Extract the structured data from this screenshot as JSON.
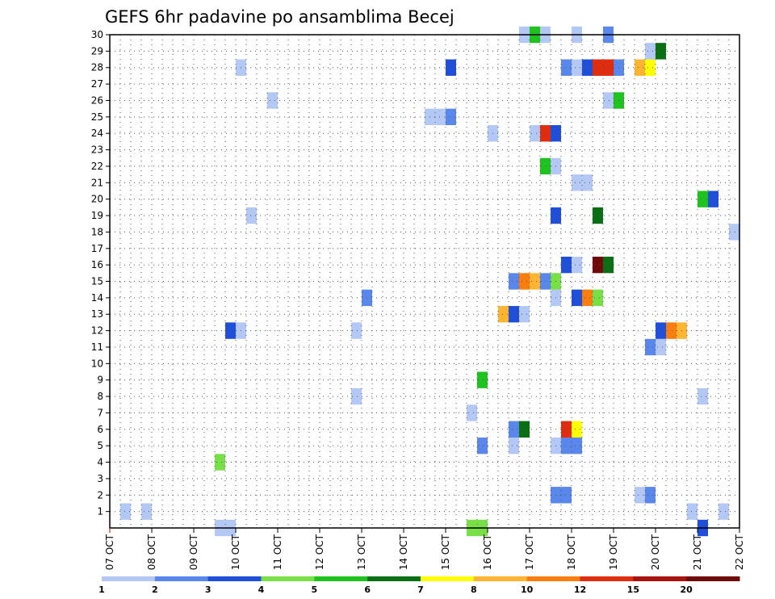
{
  "chart_data": {
    "type": "heatmap",
    "title": "GEFS 6hr padavine po ansamblima Becej",
    "x_ticks": [
      "07 OCT",
      "08 OCT",
      "09 OCT",
      "10 OCT",
      "11 OCT",
      "12 OCT",
      "13 OCT",
      "14 OCT",
      "15 OCT",
      "16 OCT",
      "17 OCT",
      "18 OCT",
      "19 OCT",
      "20 OCT",
      "21 OCT",
      "22 OCT"
    ],
    "x_range_days": [
      7,
      22
    ],
    "y_ticks": [
      "1",
      "2",
      "3",
      "4",
      "5",
      "6",
      "7",
      "8",
      "9",
      "10",
      "11",
      "12",
      "13",
      "14",
      "15",
      "16",
      "17",
      "18",
      "19",
      "20",
      "21",
      "22",
      "23",
      "24",
      "25",
      "26",
      "27",
      "28",
      "29",
      "30"
    ],
    "y_range": [
      0,
      30
    ],
    "grid": "dotted",
    "cell_hours": 6,
    "colorbar": {
      "labels": [
        "1",
        "2",
        "3",
        "4",
        "5",
        "6",
        "7",
        "8",
        "10",
        "12",
        "15",
        "20"
      ],
      "colors": [
        "#b4c8f5",
        "#5a87ec",
        "#1f4fd9",
        "#78e046",
        "#1ec31e",
        "#0a6e12",
        "#ffff00",
        "#ffb432",
        "#fa7d0f",
        "#e12d0f",
        "#a5140f",
        "#6e0a0a"
      ]
    },
    "cells": [
      {
        "day": 7.25,
        "member": 1,
        "bin": 1
      },
      {
        "day": 7.75,
        "member": 1,
        "bin": 1
      },
      {
        "day": 9.5,
        "member": 0,
        "bin": 1
      },
      {
        "day": 9.75,
        "member": 0,
        "bin": 1
      },
      {
        "day": 15.5,
        "member": 0,
        "bin": 4
      },
      {
        "day": 15.75,
        "member": 0,
        "bin": 4
      },
      {
        "day": 20.75,
        "member": 1,
        "bin": 1
      },
      {
        "day": 21.5,
        "member": 1,
        "bin": 1
      },
      {
        "day": 21,
        "member": 0,
        "bin": 3
      },
      {
        "day": 17.5,
        "member": 2,
        "bin": 2
      },
      {
        "day": 17.75,
        "member": 2,
        "bin": 2
      },
      {
        "day": 19.5,
        "member": 2,
        "bin": 1
      },
      {
        "day": 19.75,
        "member": 2,
        "bin": 2
      },
      {
        "day": 9.5,
        "member": 4,
        "bin": 4
      },
      {
        "day": 15.75,
        "member": 5,
        "bin": 2
      },
      {
        "day": 16.5,
        "member": 5,
        "bin": 1
      },
      {
        "day": 17.5,
        "member": 5,
        "bin": 1
      },
      {
        "day": 17.75,
        "member": 5,
        "bin": 2
      },
      {
        "day": 18,
        "member": 5,
        "bin": 2
      },
      {
        "day": 16.5,
        "member": 6,
        "bin": 2
      },
      {
        "day": 16.75,
        "member": 6,
        "bin": 6
      },
      {
        "day": 17.75,
        "member": 6,
        "bin": 10
      },
      {
        "day": 18,
        "member": 6,
        "bin": 7
      },
      {
        "day": 15.5,
        "member": 7,
        "bin": 1
      },
      {
        "day": 12.75,
        "member": 8,
        "bin": 1
      },
      {
        "day": 21,
        "member": 8,
        "bin": 1
      },
      {
        "day": 15.75,
        "member": 9,
        "bin": 5
      },
      {
        "day": 19.75,
        "member": 11,
        "bin": 2
      },
      {
        "day": 20,
        "member": 11,
        "bin": 1
      },
      {
        "day": 9.75,
        "member": 12,
        "bin": 3
      },
      {
        "day": 10,
        "member": 12,
        "bin": 1
      },
      {
        "day": 12.75,
        "member": 12,
        "bin": 1
      },
      {
        "day": 20,
        "member": 12,
        "bin": 3
      },
      {
        "day": 20.25,
        "member": 12,
        "bin": 9
      },
      {
        "day": 20.5,
        "member": 12,
        "bin": 8
      },
      {
        "day": 16.25,
        "member": 13,
        "bin": 8
      },
      {
        "day": 16.5,
        "member": 13,
        "bin": 3
      },
      {
        "day": 16.75,
        "member": 13,
        "bin": 1
      },
      {
        "day": 13,
        "member": 14,
        "bin": 2
      },
      {
        "day": 17.5,
        "member": 14,
        "bin": 1
      },
      {
        "day": 18,
        "member": 14,
        "bin": 3
      },
      {
        "day": 18.25,
        "member": 14,
        "bin": 9
      },
      {
        "day": 18.5,
        "member": 14,
        "bin": 4
      },
      {
        "day": 16.5,
        "member": 15,
        "bin": 2
      },
      {
        "day": 16.75,
        "member": 15,
        "bin": 9
      },
      {
        "day": 17,
        "member": 15,
        "bin": 8
      },
      {
        "day": 17.25,
        "member": 15,
        "bin": 2
      },
      {
        "day": 17.5,
        "member": 15,
        "bin": 4
      },
      {
        "day": 17.75,
        "member": 16,
        "bin": 3
      },
      {
        "day": 18,
        "member": 16,
        "bin": 1
      },
      {
        "day": 18.5,
        "member": 16,
        "bin": 12
      },
      {
        "day": 18.75,
        "member": 16,
        "bin": 6
      },
      {
        "day": 21.75,
        "member": 18,
        "bin": 1
      },
      {
        "day": 10.25,
        "member": 19,
        "bin": 1
      },
      {
        "day": 17.5,
        "member": 19,
        "bin": 3
      },
      {
        "day": 18.5,
        "member": 19,
        "bin": 6
      },
      {
        "day": 21,
        "member": 20,
        "bin": 5
      },
      {
        "day": 21.25,
        "member": 20,
        "bin": 3
      },
      {
        "day": 18,
        "member": 21,
        "bin": 1
      },
      {
        "day": 18.25,
        "member": 21,
        "bin": 1
      },
      {
        "day": 17.25,
        "member": 22,
        "bin": 5
      },
      {
        "day": 17.5,
        "member": 22,
        "bin": 1
      },
      {
        "day": 16,
        "member": 24,
        "bin": 1
      },
      {
        "day": 17,
        "member": 24,
        "bin": 1
      },
      {
        "day": 17.25,
        "member": 24,
        "bin": 10
      },
      {
        "day": 17.5,
        "member": 24,
        "bin": 3
      },
      {
        "day": 14.5,
        "member": 25,
        "bin": 1
      },
      {
        "day": 14.75,
        "member": 25,
        "bin": 1
      },
      {
        "day": 15,
        "member": 25,
        "bin": 2
      },
      {
        "day": 10.75,
        "member": 26,
        "bin": 1
      },
      {
        "day": 18.75,
        "member": 26,
        "bin": 1
      },
      {
        "day": 19,
        "member": 26,
        "bin": 5
      },
      {
        "day": 10,
        "member": 28,
        "bin": 1
      },
      {
        "day": 15,
        "member": 28,
        "bin": 3
      },
      {
        "day": 17.75,
        "member": 28,
        "bin": 2
      },
      {
        "day": 18,
        "member": 28,
        "bin": 1
      },
      {
        "day": 18.25,
        "member": 28,
        "bin": 3
      },
      {
        "day": 18.5,
        "member": 28,
        "bin": 10
      },
      {
        "day": 18.75,
        "member": 28,
        "bin": 10
      },
      {
        "day": 19,
        "member": 28,
        "bin": 2
      },
      {
        "day": 19.5,
        "member": 28,
        "bin": 8
      },
      {
        "day": 19.75,
        "member": 28,
        "bin": 7
      },
      {
        "day": 19.75,
        "member": 29,
        "bin": 1
      },
      {
        "day": 20,
        "member": 29,
        "bin": 6
      },
      {
        "day": 16.75,
        "member": 30,
        "bin": 1
      },
      {
        "day": 17,
        "member": 30,
        "bin": 5
      },
      {
        "day": 17.25,
        "member": 30,
        "bin": 1
      },
      {
        "day": 18,
        "member": 30,
        "bin": 1
      },
      {
        "day": 18.75,
        "member": 30,
        "bin": 2
      }
    ]
  }
}
